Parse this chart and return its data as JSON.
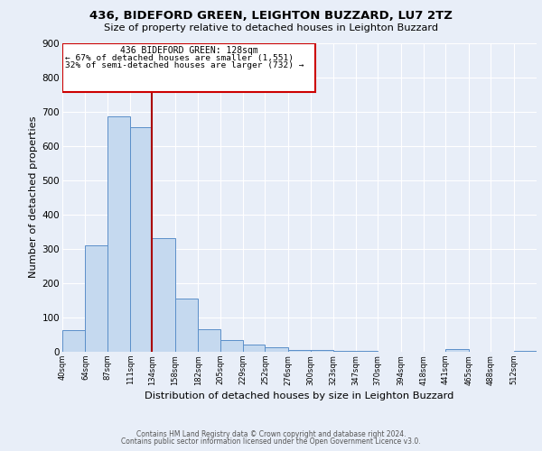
{
  "title": "436, BIDEFORD GREEN, LEIGHTON BUZZARD, LU7 2TZ",
  "subtitle": "Size of property relative to detached houses in Leighton Buzzard",
  "xlabel": "Distribution of detached houses by size in Leighton Buzzard",
  "ylabel": "Number of detached properties",
  "bar_color": "#c5d9ef",
  "bar_edge_color": "#5b8fc9",
  "background_color": "#e8eef8",
  "grid_color": "#ffffff",
  "annotation_box_color": "#cc0000",
  "annotation_line_color": "#aa0000",
  "property_line_x": 134,
  "annotation_title": "436 BIDEFORD GREEN: 128sqm",
  "annotation_line1": "← 67% of detached houses are smaller (1,551)",
  "annotation_line2": "32% of semi-detached houses are larger (732) →",
  "tick_labels": [
    "40sqm",
    "64sqm",
    "87sqm",
    "111sqm",
    "134sqm",
    "158sqm",
    "182sqm",
    "205sqm",
    "229sqm",
    "252sqm",
    "276sqm",
    "300sqm",
    "323sqm",
    "347sqm",
    "370sqm",
    "394sqm",
    "418sqm",
    "441sqm",
    "465sqm",
    "488sqm",
    "512sqm"
  ],
  "bin_edges": [
    40,
    64,
    87,
    111,
    134,
    158,
    182,
    205,
    229,
    252,
    276,
    300,
    323,
    347,
    370,
    394,
    418,
    441,
    465,
    488,
    512,
    536
  ],
  "bar_heights": [
    63,
    310,
    685,
    655,
    330,
    155,
    65,
    35,
    20,
    12,
    5,
    5,
    3,
    3,
    0,
    0,
    0,
    8,
    0,
    0,
    3
  ],
  "ylim": [
    0,
    900
  ],
  "yticks": [
    0,
    100,
    200,
    300,
    400,
    500,
    600,
    700,
    800,
    900
  ],
  "footer_line1": "Contains HM Land Registry data © Crown copyright and database right 2024.",
  "footer_line2": "Contains public sector information licensed under the Open Government Licence v3.0."
}
